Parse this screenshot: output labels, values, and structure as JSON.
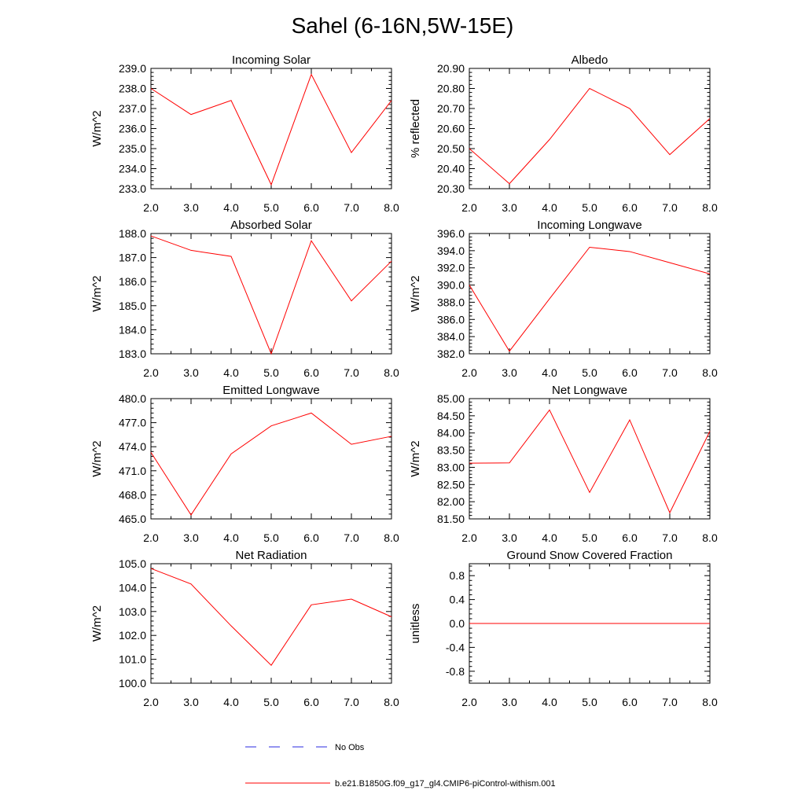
{
  "title": "Sahel (6-16N,5W-15E)",
  "colors": {
    "model": "#ff0000",
    "obs": "#2a2ae0",
    "axis": "#000000"
  },
  "legend": {
    "obs_label": "No Obs",
    "model_label": "b.e21.B1850G.f09_g17_gl4.CMIP6-piControl-withism.001"
  },
  "chart_data": [
    {
      "type": "line",
      "title": "Incoming Solar",
      "ylabel": "W/m^2",
      "xlim": [
        2.0,
        8.0
      ],
      "ylim": [
        233.0,
        239.0
      ],
      "xticks": [
        "2.0",
        "3.0",
        "4.0",
        "5.0",
        "6.0",
        "7.0",
        "8.0"
      ],
      "yticks": [
        "233.0",
        "234.0",
        "235.0",
        "236.0",
        "237.0",
        "238.0",
        "239.0"
      ],
      "series": [
        {
          "x": [
            2,
            3,
            4,
            5,
            6,
            7,
            8
          ],
          "values": [
            238.0,
            236.7,
            237.4,
            233.2,
            238.7,
            234.8,
            237.4
          ]
        }
      ]
    },
    {
      "type": "line",
      "title": "Albedo",
      "ylabel": "% reflected",
      "xlim": [
        2.0,
        8.0
      ],
      "ylim": [
        20.3,
        20.9
      ],
      "xticks": [
        "2.0",
        "3.0",
        "4.0",
        "5.0",
        "6.0",
        "7.0",
        "8.0"
      ],
      "yticks": [
        "20.30",
        "20.40",
        "20.50",
        "20.60",
        "20.70",
        "20.80",
        "20.90"
      ],
      "series": [
        {
          "x": [
            2,
            3,
            4,
            5,
            6,
            7,
            8
          ],
          "values": [
            20.5,
            20.325,
            20.545,
            20.8,
            20.7,
            20.47,
            20.65
          ]
        }
      ]
    },
    {
      "type": "line",
      "title": "Absorbed Solar",
      "ylabel": "W/m^2",
      "xlim": [
        2.0,
        8.0
      ],
      "ylim": [
        183.0,
        188.0
      ],
      "xticks": [
        "2.0",
        "3.0",
        "4.0",
        "5.0",
        "6.0",
        "7.0",
        "8.0"
      ],
      "yticks": [
        "183.0",
        "184.0",
        "185.0",
        "186.0",
        "187.0",
        "188.0"
      ],
      "series": [
        {
          "x": [
            2,
            3,
            4,
            5,
            6,
            7,
            8
          ],
          "values": [
            187.9,
            187.3,
            187.05,
            183.0,
            187.7,
            185.2,
            186.85
          ]
        }
      ]
    },
    {
      "type": "line",
      "title": "Incoming Longwave",
      "ylabel": "W/m^2",
      "xlim": [
        2.0,
        8.0
      ],
      "ylim": [
        382.0,
        396.0
      ],
      "xticks": [
        "2.0",
        "3.0",
        "4.0",
        "5.0",
        "6.0",
        "7.0",
        "8.0"
      ],
      "yticks": [
        "382.0",
        "384.0",
        "386.0",
        "388.0",
        "390.0",
        "392.0",
        "394.0",
        "396.0"
      ],
      "series": [
        {
          "x": [
            2,
            3,
            4,
            5,
            6,
            7,
            8
          ],
          "values": [
            390.0,
            382.3,
            388.4,
            394.4,
            393.9,
            392.6,
            391.3
          ]
        }
      ]
    },
    {
      "type": "line",
      "title": "Emitted Longwave",
      "ylabel": "W/m^2",
      "xlim": [
        2.0,
        8.0
      ],
      "ylim": [
        465.0,
        480.0
      ],
      "xticks": [
        "2.0",
        "3.0",
        "4.0",
        "5.0",
        "6.0",
        "7.0",
        "8.0"
      ],
      "yticks": [
        "465.0",
        "468.0",
        "471.0",
        "474.0",
        "477.0",
        "480.0"
      ],
      "series": [
        {
          "x": [
            2,
            3,
            4,
            5,
            6,
            7,
            8
          ],
          "values": [
            473.3,
            465.5,
            473.1,
            476.6,
            478.2,
            474.3,
            475.3
          ]
        }
      ]
    },
    {
      "type": "line",
      "title": "Net Longwave",
      "ylabel": "W/m^2",
      "xlim": [
        2.0,
        8.0
      ],
      "ylim": [
        81.5,
        85.0
      ],
      "xticks": [
        "2.0",
        "3.0",
        "4.0",
        "5.0",
        "6.0",
        "7.0",
        "8.0"
      ],
      "yticks": [
        "81.50",
        "82.00",
        "82.50",
        "83.00",
        "83.50",
        "84.00",
        "84.50",
        "85.00"
      ],
      "series": [
        {
          "x": [
            2,
            3,
            4,
            5,
            6,
            7,
            8
          ],
          "values": [
            83.12,
            83.13,
            84.67,
            82.27,
            84.38,
            81.68,
            84.05
          ]
        }
      ]
    },
    {
      "type": "line",
      "title": "Net Radiation",
      "ylabel": "W/m^2",
      "xlim": [
        2.0,
        8.0
      ],
      "ylim": [
        100.0,
        105.0
      ],
      "xticks": [
        "2.0",
        "3.0",
        "4.0",
        "5.0",
        "6.0",
        "7.0",
        "8.0"
      ],
      "yticks": [
        "100.0",
        "101.0",
        "102.0",
        "103.0",
        "104.0",
        "105.0"
      ],
      "series": [
        {
          "x": [
            2,
            3,
            4,
            5,
            6,
            7,
            8
          ],
          "values": [
            104.8,
            104.15,
            102.4,
            100.75,
            103.28,
            103.52,
            102.78
          ]
        }
      ]
    },
    {
      "type": "line",
      "title": "Ground Snow Covered Fraction",
      "ylabel": "unitless",
      "xlim": [
        2.0,
        8.0
      ],
      "ylim": [
        -1.0,
        1.0
      ],
      "xticks": [
        "2.0",
        "3.0",
        "4.0",
        "5.0",
        "6.0",
        "7.0",
        "8.0"
      ],
      "yticks": [
        "-0.8",
        "-0.4",
        "0.0",
        "0.4",
        "0.8"
      ],
      "series": [
        {
          "x": [
            2,
            3,
            4,
            5,
            6,
            7,
            8
          ],
          "values": [
            0,
            0,
            0,
            0,
            0,
            0,
            0
          ]
        }
      ]
    }
  ]
}
